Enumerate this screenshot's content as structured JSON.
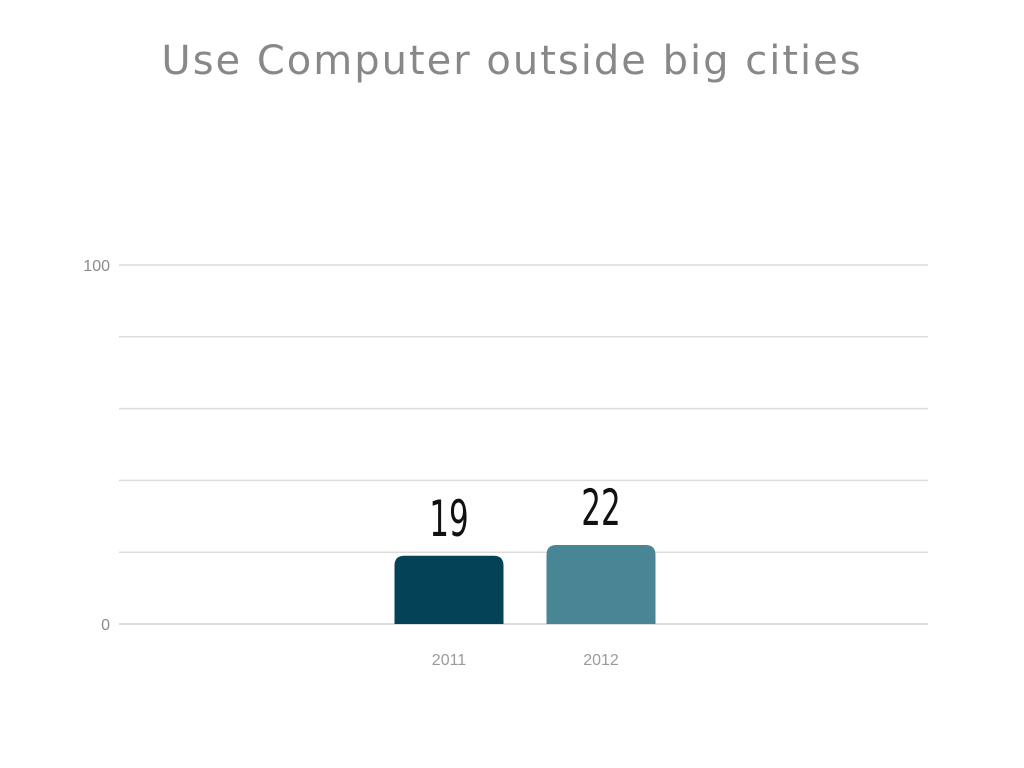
{
  "chart_data": {
    "type": "bar",
    "title": "Use Computer outside big cities",
    "categories": [
      "2011",
      "2012"
    ],
    "values": [
      19,
      22
    ],
    "data_labels": [
      "19",
      "22"
    ],
    "colors": [
      "#044257",
      "#498695"
    ],
    "ylim": [
      0,
      100
    ],
    "y_tick_labels": [
      "0",
      "100"
    ],
    "y_tick_values": [
      0,
      100
    ],
    "gridline_values": [
      0,
      20,
      40,
      60,
      80,
      100
    ],
    "grid": true,
    "legend": "none",
    "xlabel": "",
    "ylabel": ""
  }
}
